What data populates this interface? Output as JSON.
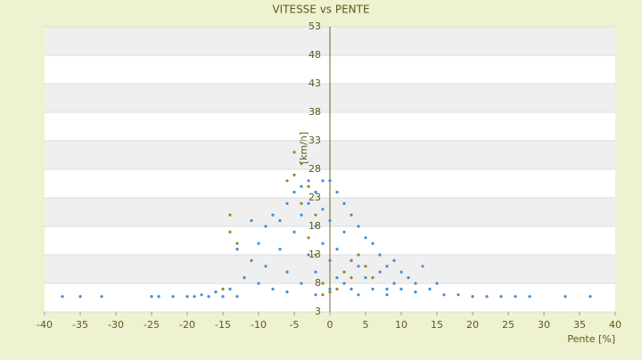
{
  "chart_data": {
    "type": "scatter",
    "title": "VITESSE vs PENTE",
    "xlabel": "Pente [%]",
    "ylabel": "[km/h]",
    "xlim": [
      -40,
      40
    ],
    "xticks": [
      -40,
      -35,
      -30,
      -25,
      -20,
      -15,
      -10,
      -5,
      0,
      5,
      10,
      15,
      20,
      25,
      30,
      35,
      40
    ],
    "ylim": [
      3,
      53
    ],
    "yticks": [
      3,
      8,
      13,
      18,
      23,
      28,
      33,
      38,
      43,
      48,
      53
    ],
    "grid": true,
    "series": [
      {
        "color": "#3d8fd6",
        "x": [
          -37.5,
          -35,
          -32,
          -25,
          -24,
          -22,
          -20,
          -19,
          -17,
          -15,
          -13,
          20,
          22,
          24,
          26,
          28,
          33,
          36.5,
          -14,
          -12,
          -11,
          -10,
          -10,
          -9,
          -9,
          -8,
          -8,
          -7,
          -7,
          -6,
          -6,
          -5,
          -5,
          -4,
          -4,
          -4,
          -3,
          -3,
          -3,
          -2,
          -2,
          -2,
          -1,
          -1,
          -1,
          0,
          0,
          0,
          0,
          1,
          1,
          1,
          2,
          2,
          2,
          3,
          3,
          3,
          4,
          4,
          5,
          5,
          6,
          6,
          7,
          7,
          8,
          8,
          9,
          9,
          10,
          10,
          11,
          12,
          13,
          14,
          15,
          16,
          18,
          -16,
          -18,
          -13,
          -11,
          -6,
          -2,
          4,
          8,
          12
        ],
        "values": [
          5.7,
          5.7,
          5.7,
          5.7,
          5.7,
          5.7,
          5.7,
          5.7,
          5.7,
          5.7,
          5.7,
          5.7,
          5.7,
          5.7,
          5.7,
          5.7,
          5.7,
          5.7,
          7,
          9,
          12,
          15,
          8,
          18,
          11,
          20,
          7,
          14,
          19,
          22,
          10,
          17,
          24,
          8,
          20,
          25,
          13,
          22,
          26,
          18,
          10,
          24,
          26,
          15,
          21,
          7,
          12,
          19,
          26,
          24,
          14,
          9,
          22,
          17,
          8,
          20,
          12,
          7,
          18,
          11,
          16,
          9,
          15,
          7,
          13,
          10,
          11,
          7,
          12,
          8,
          10,
          7,
          9,
          8,
          11,
          7,
          8,
          6,
          6,
          6.5,
          6,
          14,
          19,
          6.5,
          6,
          6,
          6,
          6.5
        ]
      },
      {
        "color": "#8c8c1e",
        "x": [
          -5,
          -4,
          -5,
          -3,
          -4,
          -2,
          -14,
          -14,
          -13,
          -1,
          0,
          1,
          2,
          3,
          4,
          5,
          3,
          -1,
          -2,
          -3,
          -15,
          6,
          -6
        ],
        "values": [
          31,
          29,
          27,
          25,
          22,
          20,
          20,
          17,
          15,
          6,
          6.5,
          7,
          10,
          12,
          13,
          11,
          9,
          8,
          13,
          16,
          7,
          9,
          26
        ]
      }
    ]
  }
}
